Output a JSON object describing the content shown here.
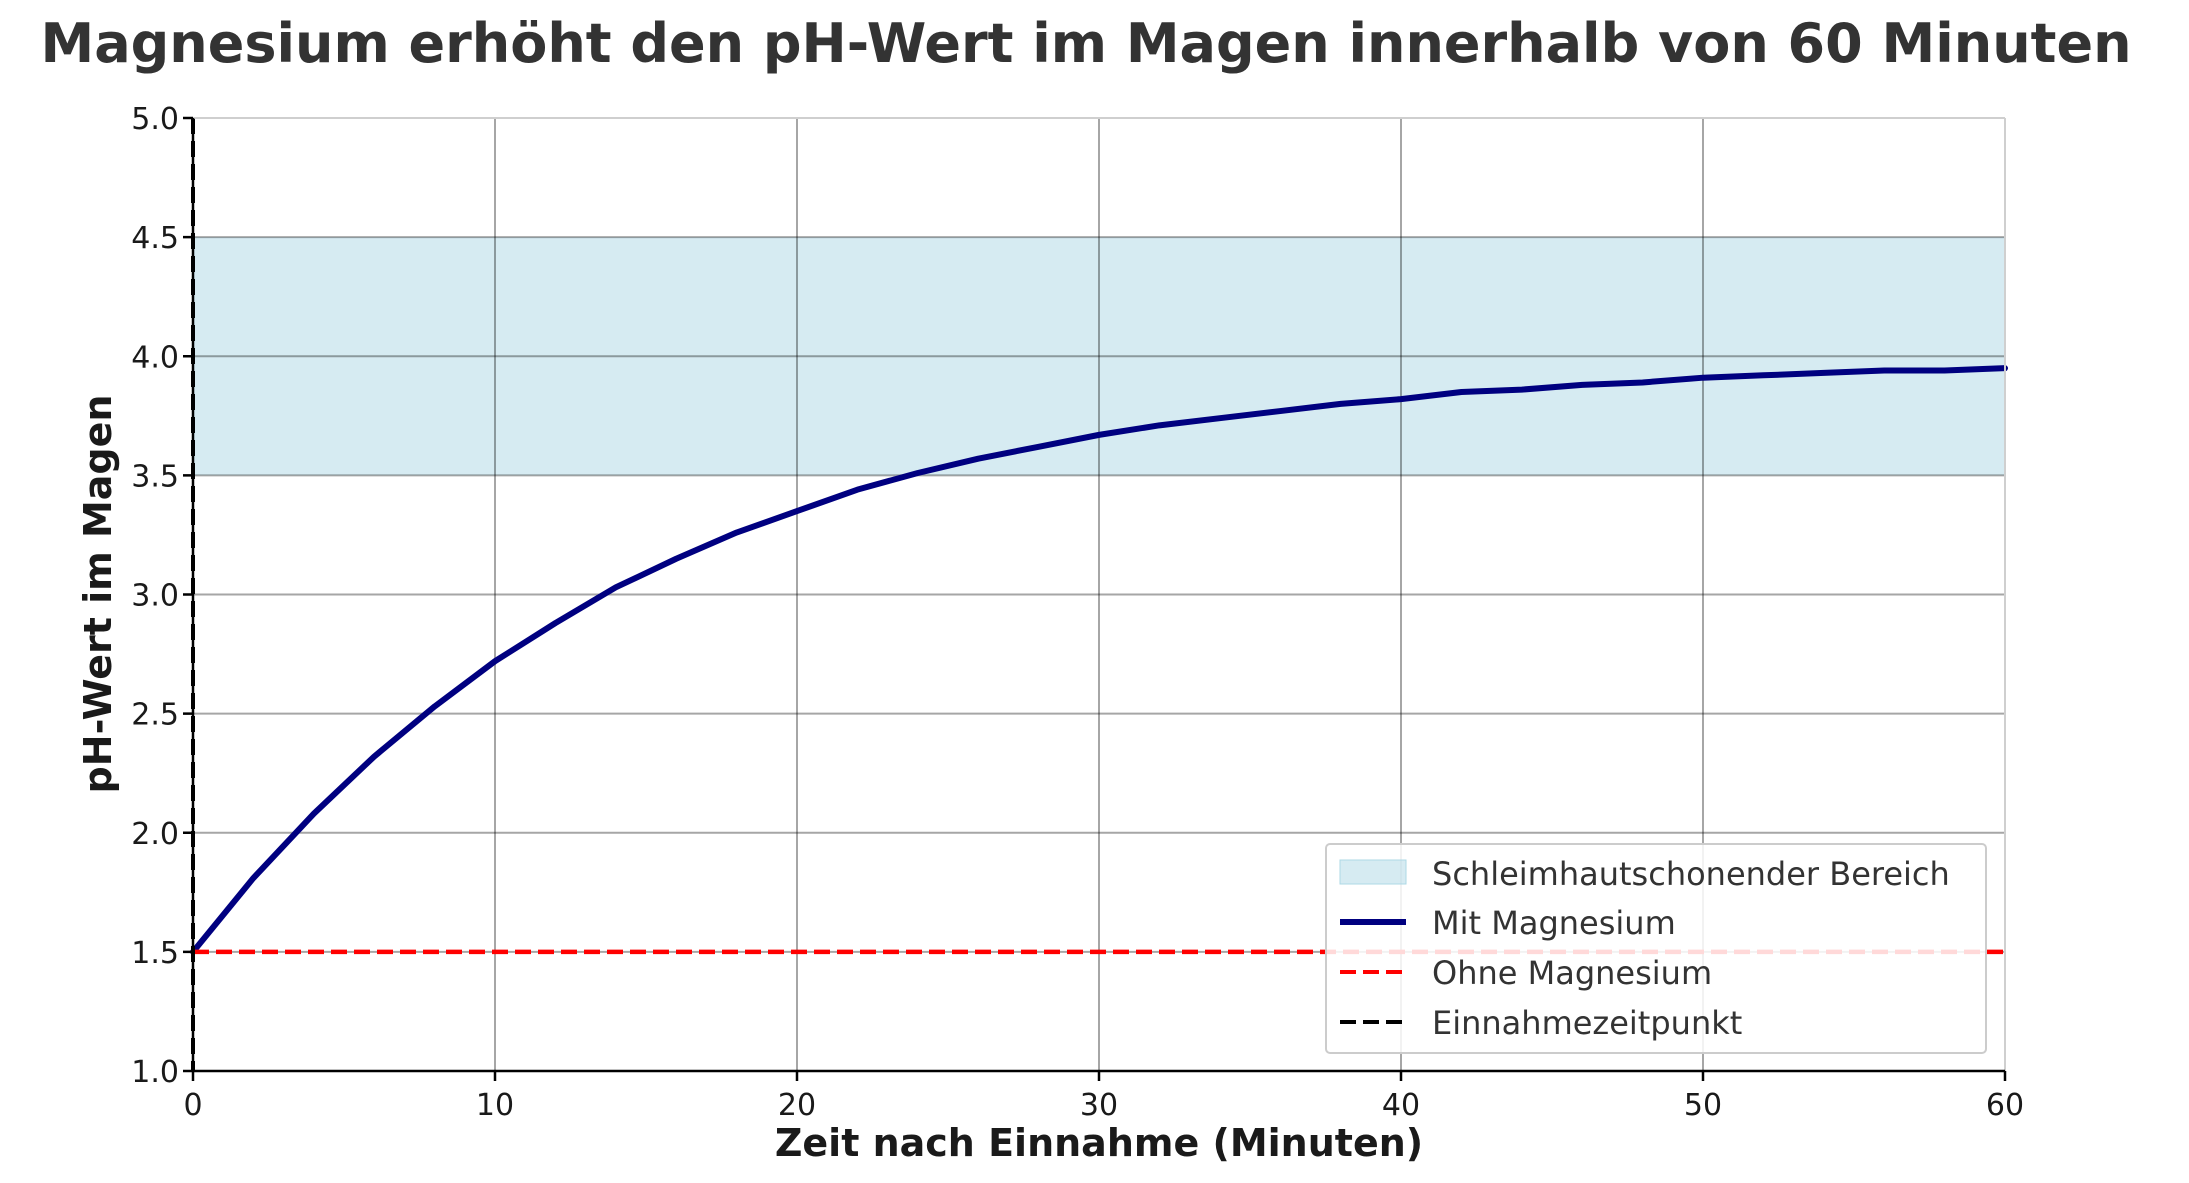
{
  "chart_data": {
    "type": "line",
    "title": "Magnesium erhöht den pH-Wert im Magen innerhalb von 60 Minuten",
    "xlabel": "Zeit nach Einnahme (Minuten)",
    "ylabel": "pH-Wert im Magen",
    "xlim": [
      0,
      60
    ],
    "ylim": [
      1.0,
      5.0
    ],
    "x_ticks": [
      0,
      10,
      20,
      30,
      40,
      50,
      60
    ],
    "y_ticks": [
      1.0,
      1.5,
      2.0,
      2.5,
      3.0,
      3.5,
      4.0,
      4.5,
      5.0
    ],
    "x_tick_labels": [
      "0",
      "10",
      "20",
      "30",
      "40",
      "50",
      "60"
    ],
    "y_tick_labels": [
      "1.0",
      "1.5",
      "2.0",
      "2.5",
      "3.0",
      "3.5",
      "4.0",
      "4.5",
      "5.0"
    ],
    "grid": true,
    "legend_position": "bottom-right",
    "band": {
      "name": "Schleimhautschonender Bereich",
      "y_from": 3.5,
      "y_to": 4.5,
      "color": "#add8e6"
    },
    "series": [
      {
        "name": "Mit Magnesium",
        "style": "solid",
        "color": "#000080",
        "x": [
          0,
          2,
          4,
          6,
          8,
          10,
          12,
          14,
          16,
          18,
          20,
          22,
          24,
          26,
          28,
          30,
          32,
          34,
          36,
          38,
          40,
          42,
          44,
          46,
          48,
          50,
          52,
          54,
          56,
          58,
          60
        ],
        "y": [
          1.5,
          1.81,
          2.08,
          2.32,
          2.53,
          2.72,
          2.88,
          3.03,
          3.15,
          3.26,
          3.35,
          3.44,
          3.51,
          3.57,
          3.62,
          3.67,
          3.71,
          3.74,
          3.77,
          3.8,
          3.82,
          3.85,
          3.86,
          3.88,
          3.89,
          3.91,
          3.92,
          3.93,
          3.94,
          3.94,
          3.95
        ]
      },
      {
        "name": "Ohne Magnesium",
        "style": "dashed",
        "color": "#ff0000",
        "x": [
          0,
          60
        ],
        "y": [
          1.5,
          1.5
        ]
      }
    ],
    "vline": {
      "name": "Einnahmezeitpunkt",
      "x": 0,
      "style": "dashed",
      "color": "#000000"
    }
  }
}
